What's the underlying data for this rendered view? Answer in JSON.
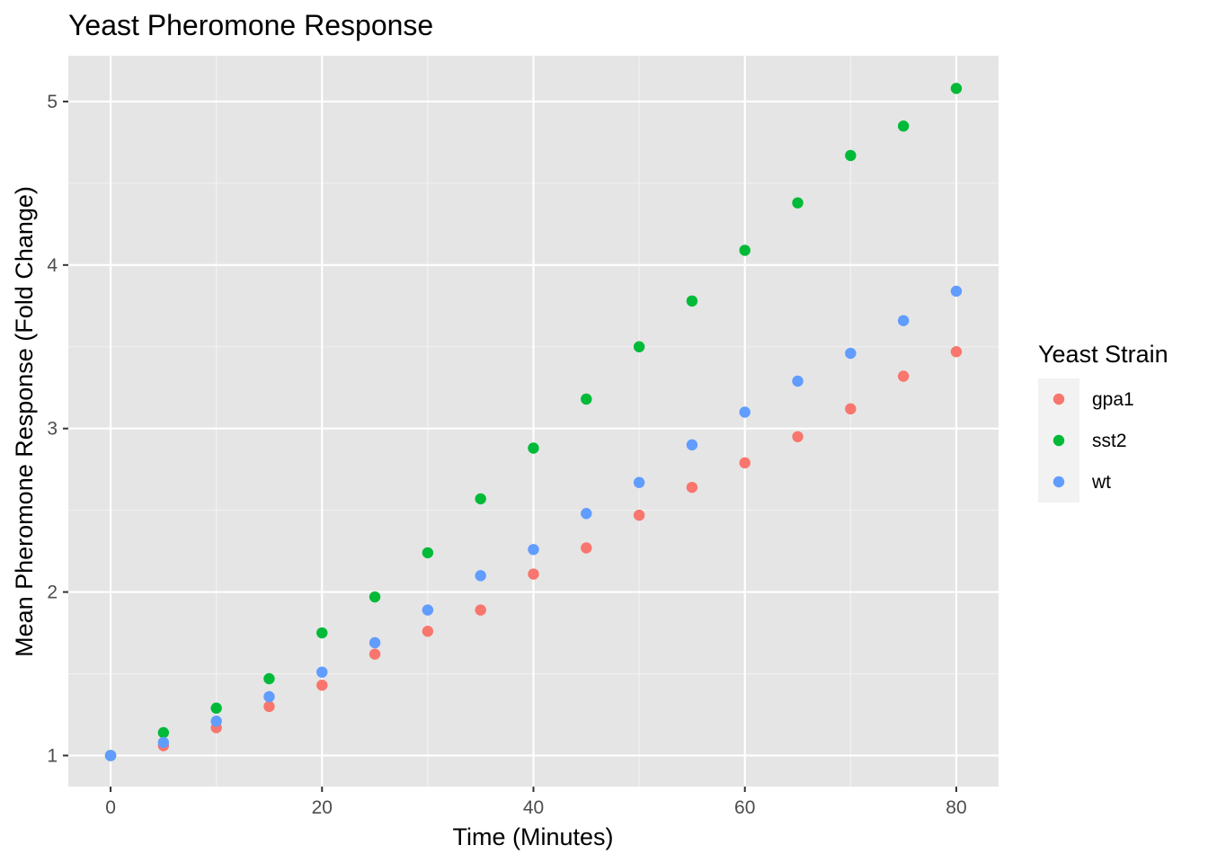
{
  "chart_data": {
    "type": "scatter",
    "title": "Yeast Pheromone Response",
    "xlabel": "Time (Minutes)",
    "ylabel": "Mean Pheromone Response (Fold Change)",
    "xlim": [
      -4,
      84
    ],
    "ylim": [
      0.81,
      5.28
    ],
    "x_ticks": [
      0,
      20,
      40,
      60,
      80
    ],
    "y_ticks": [
      1,
      2,
      3,
      4,
      5
    ],
    "x_minor": [
      10,
      30,
      50,
      70
    ],
    "y_minor": [
      1.5,
      2.5,
      3.5,
      4.5
    ],
    "grid": true,
    "background": "#e5e5e5",
    "legend": {
      "title": "Yeast Strain",
      "position": "right"
    },
    "x": [
      0,
      5,
      10,
      15,
      20,
      25,
      30,
      35,
      40,
      45,
      50,
      55,
      60,
      65,
      70,
      75,
      80
    ],
    "series": [
      {
        "name": "gpa1",
        "color": "#f8766d",
        "values": [
          1.0,
          1.06,
          1.17,
          1.3,
          1.43,
          1.62,
          1.76,
          1.89,
          2.11,
          2.27,
          2.47,
          2.64,
          2.79,
          2.95,
          3.12,
          3.32,
          3.47
        ]
      },
      {
        "name": "sst2",
        "color": "#00ba38",
        "values": [
          1.0,
          1.14,
          1.29,
          1.47,
          1.75,
          1.97,
          2.24,
          2.57,
          2.88,
          3.18,
          3.5,
          3.78,
          4.09,
          4.38,
          4.67,
          4.85,
          5.08
        ]
      },
      {
        "name": "wt",
        "color": "#619cff",
        "values": [
          1.0,
          1.08,
          1.21,
          1.36,
          1.51,
          1.69,
          1.89,
          2.1,
          2.26,
          2.48,
          2.67,
          2.9,
          3.1,
          3.29,
          3.46,
          3.66,
          3.84
        ]
      }
    ]
  }
}
